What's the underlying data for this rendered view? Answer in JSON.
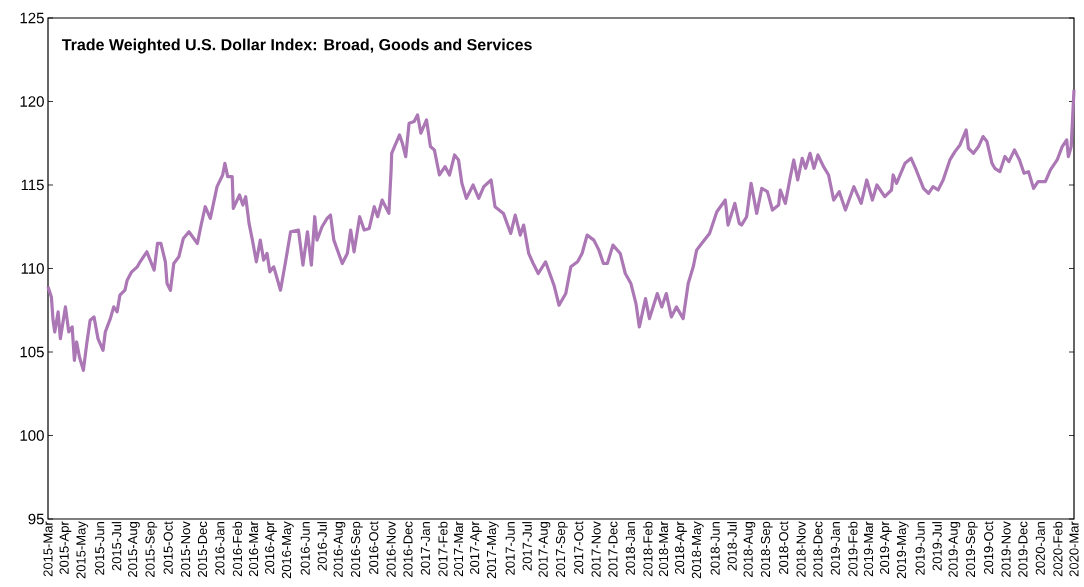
{
  "chart_data": {
    "type": "line",
    "title": "Trade Weighted U.S. Dollar Index: Broad, Goods and Services",
    "color": "#ab77b5",
    "x": [
      "2015-03-01",
      "2015-03-07",
      "2015-03-10",
      "2015-03-13",
      "2015-03-19",
      "2015-03-23",
      "2015-04-01",
      "2015-04-07",
      "2015-04-13",
      "2015-04-17",
      "2015-04-21",
      "2015-04-26",
      "2015-05-03",
      "2015-05-09",
      "2015-05-15",
      "2015-05-22",
      "2015-05-29",
      "2015-06-07",
      "2015-06-11",
      "2015-06-20",
      "2015-06-26",
      "2015-07-02",
      "2015-07-07",
      "2015-07-16",
      "2015-07-20",
      "2015-07-28",
      "2015-08-07",
      "2015-08-12",
      "2015-08-24",
      "2015-09-06",
      "2015-09-12",
      "2015-09-18",
      "2015-09-26",
      "2015-09-29",
      "2015-10-05",
      "2015-10-11",
      "2015-10-20",
      "2015-10-28",
      "2015-11-07",
      "2015-11-22",
      "2015-11-28",
      "2015-12-06",
      "2015-12-15",
      "2015-12-27",
      "2016-01-06",
      "2016-01-10",
      "2016-01-15",
      "2016-01-23",
      "2016-01-25",
      "2016-02-05",
      "2016-02-11",
      "2016-02-16",
      "2016-02-22",
      "2016-02-28",
      "2016-03-06",
      "2016-03-13",
      "2016-03-19",
      "2016-03-25",
      "2016-03-30",
      "2016-04-06",
      "2016-04-18",
      "2016-04-27",
      "2016-05-06",
      "2016-05-20",
      "2016-05-28",
      "2016-06-05",
      "2016-06-12",
      "2016-06-18",
      "2016-06-22",
      "2016-07-01",
      "2016-07-10",
      "2016-07-16",
      "2016-07-22",
      "2016-08-06",
      "2016-08-15",
      "2016-08-21",
      "2016-08-27",
      "2016-09-06",
      "2016-09-14",
      "2016-09-23",
      "2016-10-02",
      "2016-10-08",
      "2016-10-16",
      "2016-10-28",
      "2016-11-01",
      "2016-11-02",
      "2016-11-07",
      "2016-11-16",
      "2016-11-21",
      "2016-11-27",
      "2016-12-03",
      "2016-12-12",
      "2016-12-18",
      "2016-12-24",
      "2017-01-03",
      "2017-01-10",
      "2017-01-17",
      "2017-01-26",
      "2017-02-05",
      "2017-02-13",
      "2017-02-22",
      "2017-03-01",
      "2017-03-07",
      "2017-03-15",
      "2017-03-27",
      "2017-04-06",
      "2017-04-15",
      "2017-04-28",
      "2017-05-05",
      "2017-05-20",
      "2017-06-02",
      "2017-06-10",
      "2017-06-19",
      "2017-06-25",
      "2017-07-04",
      "2017-07-12",
      "2017-07-21",
      "2017-08-03",
      "2017-08-18",
      "2017-08-27",
      "2017-09-08",
      "2017-09-17",
      "2017-09-29",
      "2017-10-07",
      "2017-10-16",
      "2017-10-28",
      "2017-11-06",
      "2017-11-14",
      "2017-11-21",
      "2017-12-01",
      "2017-12-14",
      "2017-12-23",
      "2018-01-02",
      "2018-01-11",
      "2018-01-17",
      "2018-01-28",
      "2018-02-04",
      "2018-02-18",
      "2018-02-26",
      "2018-03-06",
      "2018-03-15",
      "2018-03-24",
      "2018-04-05",
      "2018-04-14",
      "2018-04-23",
      "2018-04-29",
      "2018-05-08",
      "2018-05-22",
      "2018-06-04",
      "2018-06-19",
      "2018-06-24",
      "2018-07-06",
      "2018-07-14",
      "2018-07-18",
      "2018-07-27",
      "2018-08-04",
      "2018-08-14",
      "2018-08-23",
      "2018-09-02",
      "2018-09-11",
      "2018-09-22",
      "2018-09-25",
      "2018-10-04",
      "2018-10-13",
      "2018-10-19",
      "2018-10-26",
      "2018-11-03",
      "2018-11-09",
      "2018-11-17",
      "2018-11-24",
      "2018-12-01",
      "2018-12-11",
      "2018-12-20",
      "2018-12-29",
      "2019-01-08",
      "2019-01-19",
      "2019-02-03",
      "2019-02-16",
      "2019-02-26",
      "2019-03-08",
      "2019-03-16",
      "2019-03-30",
      "2019-04-11",
      "2019-04-14",
      "2019-04-20",
      "2019-05-05",
      "2019-05-16",
      "2019-05-25",
      "2019-06-07",
      "2019-06-16",
      "2019-06-24",
      "2019-07-03",
      "2019-07-12",
      "2019-07-24",
      "2019-08-02",
      "2019-08-11",
      "2019-08-22",
      "2019-08-26",
      "2019-09-04",
      "2019-09-13",
      "2019-09-21",
      "2019-09-28",
      "2019-10-07",
      "2019-10-12",
      "2019-10-21",
      "2019-10-30",
      "2019-11-06",
      "2019-11-16",
      "2019-11-25",
      "2019-12-03",
      "2019-12-11",
      "2019-12-20",
      "2019-12-28",
      "2020-01-10",
      "2020-01-19",
      "2020-01-31",
      "2020-02-09",
      "2020-02-17",
      "2020-02-20",
      "2020-02-25",
      "2020-03-01"
    ],
    "values": [
      108.9,
      108.3,
      106.9,
      106.2,
      107.4,
      105.8,
      107.7,
      106.2,
      106.5,
      104.5,
      105.6,
      104.7,
      103.9,
      105.5,
      106.9,
      107.1,
      105.8,
      105.1,
      106.2,
      107.0,
      107.7,
      107.4,
      108.4,
      108.7,
      109.3,
      109.8,
      110.1,
      110.4,
      111.0,
      109.9,
      111.5,
      111.5,
      110.4,
      109.1,
      108.7,
      110.3,
      110.7,
      111.8,
      112.2,
      111.5,
      112.5,
      113.7,
      113.0,
      114.9,
      115.6,
      116.3,
      115.5,
      115.5,
      113.6,
      114.4,
      113.8,
      114.3,
      112.7,
      111.7,
      110.4,
      111.7,
      110.5,
      110.9,
      109.8,
      110.1,
      108.7,
      110.4,
      112.2,
      112.3,
      110.2,
      112.2,
      110.2,
      113.1,
      111.7,
      112.5,
      113.0,
      113.2,
      111.7,
      110.3,
      110.9,
      112.3,
      111.0,
      113.1,
      112.3,
      112.4,
      113.7,
      113.1,
      114.1,
      113.3,
      115.9,
      116.9,
      117.3,
      118.0,
      117.5,
      116.7,
      118.7,
      118.8,
      119.2,
      118.1,
      118.9,
      117.3,
      117.1,
      115.6,
      116.1,
      115.6,
      116.8,
      116.5,
      115.1,
      114.2,
      115.0,
      114.2,
      114.9,
      115.3,
      113.7,
      113.3,
      112.1,
      113.2,
      112.0,
      112.6,
      110.9,
      110.3,
      109.7,
      110.4,
      109.0,
      107.8,
      108.5,
      110.1,
      110.4,
      110.9,
      112.0,
      111.7,
      111.1,
      110.3,
      110.3,
      111.4,
      110.9,
      109.7,
      109.1,
      107.9,
      106.5,
      108.2,
      107.0,
      108.5,
      107.7,
      108.5,
      107.1,
      107.7,
      107.0,
      109.1,
      110.1,
      111.1,
      111.5,
      112.1,
      113.4,
      114.1,
      112.6,
      113.9,
      112.7,
      112.6,
      113.1,
      115.1,
      113.3,
      114.8,
      114.6,
      113.5,
      113.8,
      114.7,
      113.9,
      115.5,
      116.5,
      115.3,
      116.6,
      116.0,
      116.9,
      116.0,
      116.8,
      116.1,
      115.6,
      114.1,
      114.6,
      113.5,
      114.9,
      113.9,
      115.3,
      114.1,
      115.0,
      114.3,
      114.7,
      115.6,
      115.1,
      116.3,
      116.6,
      115.9,
      114.8,
      114.5,
      114.9,
      114.7,
      115.3,
      116.5,
      117.0,
      117.4,
      118.3,
      117.2,
      116.9,
      117.3,
      117.9,
      117.6,
      116.3,
      116.0,
      115.8,
      116.7,
      116.4,
      117.1,
      116.5,
      115.7,
      115.8,
      114.8,
      115.2,
      115.2,
      115.9,
      116.5,
      117.3,
      117.7,
      116.7,
      117.3,
      120.7
    ],
    "xlim": [
      "2015-03-01",
      "2020-03-01"
    ],
    "ylim": [
      95,
      125
    ],
    "yticks": [
      95,
      100,
      105,
      110,
      115,
      120,
      125
    ],
    "xticks": [
      {
        "value": "2015-03-01",
        "label": "2015-Mar"
      },
      {
        "value": "2015-04-01",
        "label": "2015-Apr"
      },
      {
        "value": "2015-05-01",
        "label": "2015-May"
      },
      {
        "value": "2015-06-01",
        "label": "2015-Jun"
      },
      {
        "value": "2015-07-01",
        "label": "2015-Jul"
      },
      {
        "value": "2015-08-01",
        "label": "2015-Aug"
      },
      {
        "value": "2015-09-01",
        "label": "2015-Sep"
      },
      {
        "value": "2015-10-01",
        "label": "2015-Oct"
      },
      {
        "value": "2015-11-01",
        "label": "2015-Nov"
      },
      {
        "value": "2015-12-01",
        "label": "2015-Dec"
      },
      {
        "value": "2016-01-01",
        "label": "2016-Jan"
      },
      {
        "value": "2016-02-01",
        "label": "2016-Feb"
      },
      {
        "value": "2016-03-01",
        "label": "2016-Mar"
      },
      {
        "value": "2016-04-01",
        "label": "2016-Apr"
      },
      {
        "value": "2016-05-01",
        "label": "2016-May"
      },
      {
        "value": "2016-06-01",
        "label": "2016-Jun"
      },
      {
        "value": "2016-07-01",
        "label": "2016-Jul"
      },
      {
        "value": "2016-08-01",
        "label": "2016-Aug"
      },
      {
        "value": "2016-09-01",
        "label": "2016-Sep"
      },
      {
        "value": "2016-10-01",
        "label": "2016-Oct"
      },
      {
        "value": "2016-11-01",
        "label": "2016-Nov"
      },
      {
        "value": "2016-12-01",
        "label": "2016-Dec"
      },
      {
        "value": "2017-01-01",
        "label": "2017-Jan"
      },
      {
        "value": "2017-02-01",
        "label": "2017-Feb"
      },
      {
        "value": "2017-03-01",
        "label": "2017-Mar"
      },
      {
        "value": "2017-04-01",
        "label": "2017-Apr"
      },
      {
        "value": "2017-05-01",
        "label": "2017-May"
      },
      {
        "value": "2017-06-01",
        "label": "2017-Jun"
      },
      {
        "value": "2017-07-01",
        "label": "2017-Jul"
      },
      {
        "value": "2017-08-01",
        "label": "2017-Aug"
      },
      {
        "value": "2017-09-01",
        "label": "2017-Sep"
      },
      {
        "value": "2017-10-01",
        "label": "2017-Oct"
      },
      {
        "value": "2017-11-01",
        "label": "2017-Nov"
      },
      {
        "value": "2017-12-01",
        "label": "2017-Dec"
      },
      {
        "value": "2018-01-01",
        "label": "2018-Jan"
      },
      {
        "value": "2018-02-01",
        "label": "2018-Feb"
      },
      {
        "value": "2018-03-01",
        "label": "2018-Mar"
      },
      {
        "value": "2018-04-01",
        "label": "2018-Apr"
      },
      {
        "value": "2018-05-01",
        "label": "2018-May"
      },
      {
        "value": "2018-06-01",
        "label": "2018-Jun"
      },
      {
        "value": "2018-07-01",
        "label": "2018-Jul"
      },
      {
        "value": "2018-08-01",
        "label": "2018-Aug"
      },
      {
        "value": "2018-09-01",
        "label": "2018-Sep"
      },
      {
        "value": "2018-10-01",
        "label": "2018-Oct"
      },
      {
        "value": "2018-11-01",
        "label": "2018-Nov"
      },
      {
        "value": "2018-12-01",
        "label": "2018-Dec"
      },
      {
        "value": "2019-01-01",
        "label": "2019-Jan"
      },
      {
        "value": "2019-02-01",
        "label": "2019-Feb"
      },
      {
        "value": "2019-03-01",
        "label": "2019-Mar"
      },
      {
        "value": "2019-04-01",
        "label": "2019-Apr"
      },
      {
        "value": "2019-05-01",
        "label": "2019-May"
      },
      {
        "value": "2019-06-01",
        "label": "2019-Jun"
      },
      {
        "value": "2019-07-01",
        "label": "2019-Jul"
      },
      {
        "value": "2019-08-01",
        "label": "2019-Aug"
      },
      {
        "value": "2019-09-01",
        "label": "2019-Sep"
      },
      {
        "value": "2019-10-01",
        "label": "2019-Oct"
      },
      {
        "value": "2019-11-01",
        "label": "2019-Nov"
      },
      {
        "value": "2019-12-01",
        "label": "2019-Dec"
      },
      {
        "value": "2020-01-01",
        "label": "2020-Jan"
      },
      {
        "value": "2020-02-01",
        "label": "2020-Feb"
      },
      {
        "value": "2020-03-01",
        "label": "2020-Mar"
      }
    ]
  }
}
